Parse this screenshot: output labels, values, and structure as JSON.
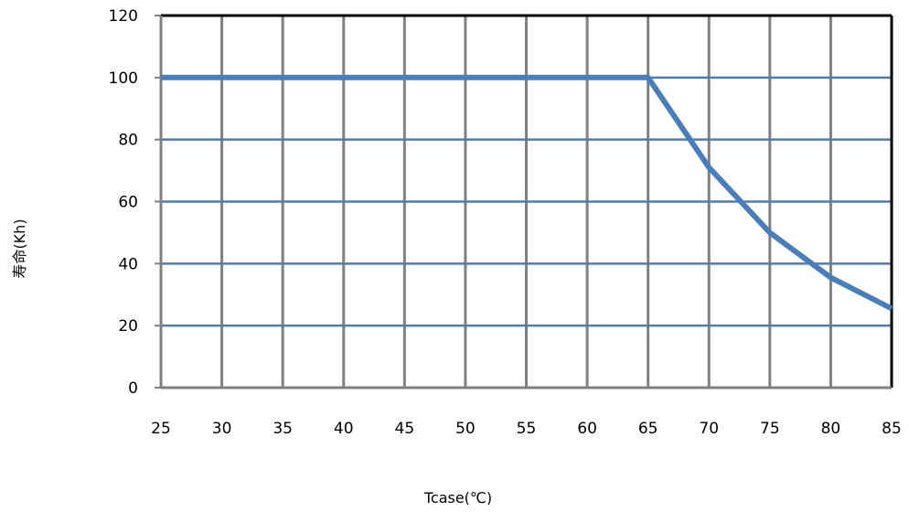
{
  "chart_data": {
    "type": "line",
    "title": "",
    "xlabel": "Tcase(℃)",
    "ylabel": "寿命(Kh)",
    "xlim": [
      25,
      85
    ],
    "ylim": [
      0,
      120
    ],
    "x_ticks": [
      "25",
      "30",
      "35",
      "40",
      "45",
      "50",
      "55",
      "60",
      "65",
      "70",
      "75",
      "80",
      "85"
    ],
    "y_ticks": [
      "0",
      "20",
      "40",
      "60",
      "80",
      "100",
      "120"
    ],
    "grid": true,
    "legend": "none",
    "colors": {
      "line": "#4a7ebb",
      "grid_horizontal": "#4a7ebb",
      "grid_vertical": "#808080",
      "frame": "#000000"
    },
    "series": [
      {
        "x": [
          25,
          30,
          35,
          40,
          45,
          50,
          55,
          60,
          65,
          70,
          75,
          80,
          85
        ],
        "values": [
          100,
          100,
          100,
          100,
          100,
          100,
          100,
          100,
          100,
          71,
          50,
          35.5,
          25.5
        ]
      }
    ]
  }
}
